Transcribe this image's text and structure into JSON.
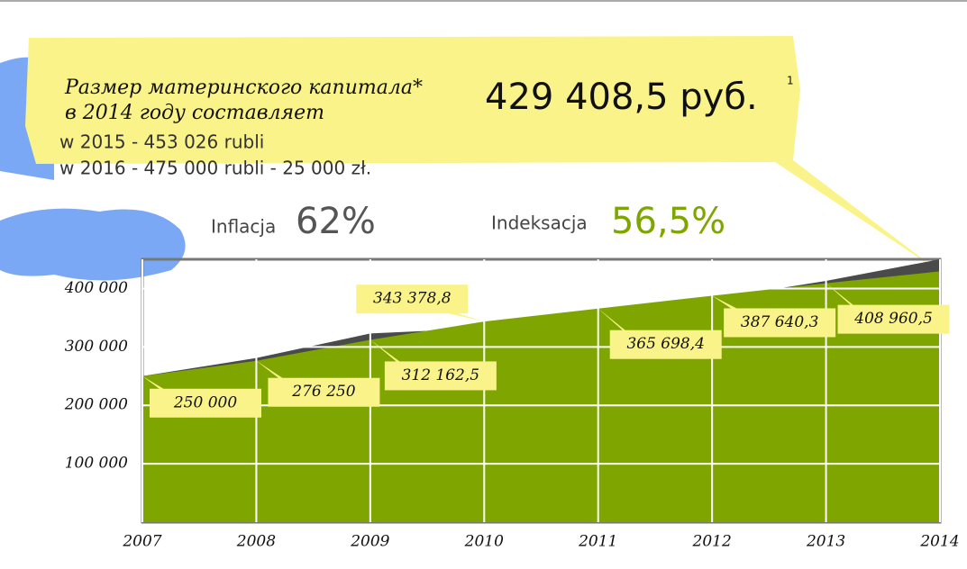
{
  "header": {
    "title_line1": "Размер материнского капитала*",
    "title_line2": "в 2014 году составляет",
    "amount": "429 408,5 руб.",
    "footnote": "1",
    "line_2015": "w 2015 - 453 026 rubli",
    "line_2016": "w 2016 - 475 000 rubli - 25 000 zł."
  },
  "summary": {
    "inflation_label": "Inflacja",
    "inflation_value": "62%",
    "indexation_label": "Indeksacja",
    "indexation_value": "56,5%"
  },
  "chart_data": {
    "type": "area",
    "x": [
      2007,
      2008,
      2009,
      2010,
      2011,
      2012,
      2013,
      2014
    ],
    "xlim": [
      2007,
      2014
    ],
    "ylim": [
      0,
      450000
    ],
    "yticks": [
      {
        "value": 100000,
        "label": "100 000"
      },
      {
        "value": 200000,
        "label": "200 000"
      },
      {
        "value": 300000,
        "label": "300 000"
      },
      {
        "value": 400000,
        "label": "400 000"
      }
    ],
    "grid": true,
    "series": [
      {
        "name": "Inflacja",
        "color": "#4a4a4a",
        "values": [
          250000,
          281000,
          323000,
          332000,
          360000,
          382000,
          413000,
          450000
        ]
      },
      {
        "name": "Indeksacja",
        "color": "#7fa600",
        "values": [
          250000,
          276250,
          312162.5,
          343378.8,
          365698.4,
          387640.3,
          408960.5,
          429408.5
        ],
        "value_labels": [
          "250 000",
          "276 250",
          "312 162,5",
          "343 378,8",
          "365 698,4",
          "387 640,3",
          "408 960,5",
          null
        ]
      }
    ]
  }
}
